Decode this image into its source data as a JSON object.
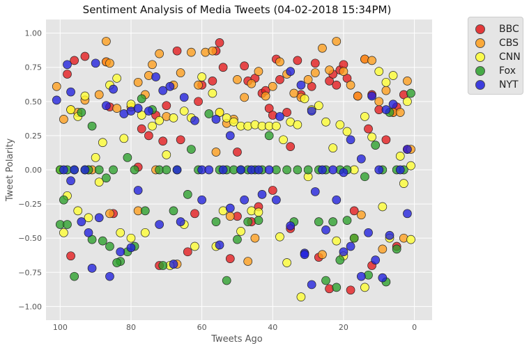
{
  "chart_data": {
    "type": "scatter",
    "title": "Sentiment Analysis of Media Tweets (04-02-2018 15:34PM)",
    "xlabel": "Tweets Ago",
    "ylabel": "Tweet Polarity",
    "xlim": [
      104,
      -5
    ],
    "ylim": [
      -1.1,
      1.1
    ],
    "x_ticks": [
      100,
      80,
      60,
      40,
      20,
      0
    ],
    "y_ticks": [
      1.0,
      0.75,
      0.5,
      0.25,
      0.0,
      -0.25,
      -0.5,
      -0.75,
      -1.0
    ],
    "x_tick_labels": [
      "100",
      "80",
      "60",
      "40",
      "20",
      "0"
    ],
    "y_tick_labels": [
      "1.00",
      "0.75",
      "0.50",
      "0.25",
      "0.00",
      "−0.25",
      "−0.50",
      "−0.75",
      "−1.00"
    ],
    "grid": true,
    "legend_position": "outside-top-right",
    "series": [
      {
        "name": "BBC",
        "color": "#e41a1c",
        "x": [
          96,
          98,
          93,
          87,
          86,
          78,
          77,
          75,
          73,
          71,
          70,
          67,
          66,
          61,
          60,
          57,
          56,
          55,
          54,
          50,
          48,
          47,
          45,
          43,
          42,
          41,
          40,
          39,
          38,
          36,
          35,
          33,
          32,
          29,
          28,
          24,
          23,
          22,
          21,
          20,
          19,
          16,
          14,
          13,
          12,
          10,
          8,
          6,
          5,
          3,
          2,
          97,
          85,
          72,
          64,
          62,
          52,
          50,
          46,
          44,
          40,
          35,
          27,
          24,
          18,
          17,
          12,
          5
        ],
        "y": [
          0.8,
          0.7,
          0.83,
          0.79,
          0.46,
          0.02,
          0.3,
          0.25,
          0.4,
          0.21,
          0.47,
          0.87,
          0.22,
          0.5,
          0.62,
          0.65,
          0.87,
          0.93,
          0.75,
          0.13,
          0.76,
          0.65,
          0.67,
          0.56,
          0.58,
          0.45,
          0.4,
          0.81,
          0.66,
          0.42,
          0.17,
          0.8,
          0.55,
          0.61,
          0.78,
          0.65,
          0.7,
          0.62,
          0.73,
          0.77,
          0.67,
          0.54,
          0.81,
          0.3,
          0.55,
          0.44,
          0.22,
          0.42,
          0.46,
          0.55,
          0.15,
          -0.63,
          -0.32,
          -0.7,
          -0.6,
          -0.32,
          -0.65,
          -0.34,
          -0.38,
          -0.27,
          -0.15,
          -0.43,
          -0.64,
          -0.87,
          -0.88,
          -0.3,
          -0.7,
          -0.56
        ]
      },
      {
        "name": "CBS",
        "color": "#ff9f1c",
        "x": [
          101,
          99,
          97,
          95,
          93,
          91,
          89,
          87,
          86,
          84,
          80,
          78,
          76,
          75,
          74,
          72,
          70,
          68,
          66,
          63,
          61,
          59,
          57,
          55,
          53,
          51,
          50,
          48,
          46,
          44,
          42,
          40,
          38,
          36,
          34,
          32,
          30,
          28,
          26,
          24,
          22,
          20,
          18,
          16,
          14,
          12,
          10,
          8,
          6,
          4,
          2,
          1,
          92,
          86,
          78,
          73,
          67,
          52,
          47,
          45,
          26,
          17,
          15,
          9,
          3,
          87,
          56
        ],
        "y": [
          0.61,
          0.37,
          0.44,
          0.42,
          0.51,
          0.0,
          0.55,
          0.79,
          0.78,
          0.45,
          0.46,
          0.64,
          0.55,
          0.69,
          0.77,
          0.85,
          0.39,
          0.62,
          0.71,
          0.86,
          0.62,
          0.86,
          0.87,
          0.42,
          0.34,
          0.37,
          0.66,
          0.53,
          0.63,
          0.72,
          0.54,
          0.61,
          0.79,
          0.7,
          0.56,
          0.53,
          0.66,
          0.71,
          0.89,
          0.73,
          0.94,
          0.72,
          0.62,
          0.54,
          0.81,
          0.8,
          0.5,
          0.58,
          0.42,
          0.42,
          0.65,
          0.15,
          0.0,
          -0.32,
          -0.3,
          0.0,
          -0.69,
          -0.34,
          -0.67,
          -0.5,
          -0.62,
          -0.5,
          -0.33,
          -0.58,
          -0.5,
          0.94,
          0.13
        ]
      },
      {
        "name": "CNN",
        "color": "#ffff33",
        "x": [
          100,
          98,
          97,
          95,
          93,
          90,
          88,
          86,
          84,
          82,
          80,
          77,
          74,
          72,
          70,
          68,
          65,
          63,
          60,
          57,
          55,
          53,
          51,
          49,
          47,
          45,
          43,
          41,
          39,
          37,
          35,
          33,
          31,
          29,
          27,
          25,
          23,
          21,
          19,
          17,
          14,
          12,
          10,
          8,
          6,
          4,
          2,
          1,
          99,
          95,
          92,
          89,
          83,
          80,
          76,
          69,
          65,
          62,
          56,
          54,
          49,
          46,
          44,
          38,
          36,
          32,
          30,
          22,
          20,
          14,
          9,
          7,
          3,
          1
        ],
        "y": [
          0.0,
          -0.19,
          0.44,
          0.39,
          0.54,
          0.09,
          0.2,
          0.62,
          0.67,
          0.23,
          0.48,
          0.4,
          0.32,
          0.36,
          0.11,
          0.38,
          0.43,
          0.38,
          0.68,
          0.56,
          0.42,
          0.38,
          0.35,
          0.32,
          0.32,
          0.33,
          0.32,
          0.32,
          0.32,
          0.22,
          0.35,
          0.33,
          0.52,
          0.44,
          0.47,
          0.35,
          0.16,
          0.33,
          0.28,
          0.0,
          0.39,
          0.24,
          0.72,
          0.64,
          0.69,
          0.1,
          0.5,
          0.03,
          -0.46,
          -0.3,
          -0.35,
          -0.09,
          -0.46,
          -0.5,
          -0.46,
          -0.7,
          -0.4,
          -0.56,
          -0.56,
          -0.3,
          -0.45,
          -0.3,
          -0.31,
          -0.49,
          -0.68,
          -0.93,
          -0.05,
          -0.52,
          -0.63,
          -0.86,
          -0.27,
          -0.5,
          -0.1,
          -0.51
        ]
      },
      {
        "name": "Fox",
        "color": "#2ca02c",
        "x": [
          100,
          99,
          98,
          96,
          94,
          92,
          91,
          89,
          87,
          85,
          83,
          81,
          79,
          77,
          74,
          72,
          70,
          67,
          63,
          61,
          58,
          55,
          53,
          51,
          49,
          47,
          45,
          43,
          41,
          39,
          36,
          33,
          30,
          27,
          25,
          23,
          21,
          19,
          17,
          14,
          11,
          9,
          7,
          5,
          3,
          1,
          100,
          98,
          96,
          93,
          91,
          88,
          86,
          84,
          81,
          79,
          76,
          71,
          68,
          64,
          56,
          53,
          50,
          47,
          44,
          34,
          27,
          25,
          22,
          21,
          19,
          13,
          8,
          5
        ],
        "y": [
          0.0,
          -0.22,
          0.0,
          -0.78,
          0.42,
          0.0,
          0.32,
          0.0,
          -0.06,
          0.0,
          -0.67,
          0.09,
          0.0,
          0.52,
          0.44,
          0.0,
          0.0,
          0.0,
          0.15,
          0.0,
          0.41,
          0.0,
          0.0,
          0.0,
          0.0,
          0.0,
          0.0,
          0.0,
          0.25,
          0.0,
          0.0,
          0.0,
          0.0,
          0.0,
          0.0,
          -0.38,
          0.0,
          0.0,
          -0.5,
          -0.05,
          0.18,
          0.0,
          0.42,
          0.0,
          0.0,
          0.56,
          -0.4,
          -0.4,
          0.0,
          0.0,
          -0.51,
          -0.52,
          -0.56,
          -0.68,
          -0.6,
          -0.56,
          -0.3,
          -0.7,
          -0.3,
          -0.18,
          -0.38,
          -0.81,
          -0.51,
          -0.38,
          -0.37,
          -0.38,
          -0.38,
          -0.81,
          -0.86,
          -0.66,
          -0.37,
          -0.77,
          -0.82,
          -0.58
        ]
      },
      {
        "name": "NYT",
        "color": "#2020dd",
        "x": [
          101,
          99,
          98,
          97,
          96,
          93,
          90,
          87,
          85,
          82,
          80,
          78,
          75,
          73,
          71,
          69,
          67,
          65,
          62,
          60,
          58,
          56,
          54,
          52,
          49,
          46,
          44,
          41,
          38,
          35,
          32,
          29,
          26,
          23,
          20,
          18,
          15,
          12,
          10,
          8,
          6,
          4,
          2,
          97,
          94,
          92,
          89,
          86,
          83,
          80,
          78,
          72,
          68,
          66,
          60,
          55,
          52,
          48,
          43,
          39,
          35,
          31,
          29,
          28,
          25,
          22,
          20,
          18,
          15,
          13,
          11,
          9,
          7,
          2,
          91,
          31
        ],
        "y": [
          0.51,
          0.0,
          0.77,
          0.57,
          0.0,
          0.0,
          0.78,
          0.47,
          0.59,
          0.41,
          0.43,
          0.45,
          0.43,
          0.68,
          0.58,
          0.61,
          0.0,
          0.53,
          0.36,
          0.0,
          0.0,
          0.37,
          0.0,
          0.25,
          0.0,
          0.0,
          0.0,
          0.0,
          0.39,
          0.72,
          0.62,
          0.43,
          0.0,
          0.0,
          -0.02,
          0.22,
          0.08,
          0.54,
          0.0,
          0.44,
          0.48,
          0.0,
          0.15,
          -0.08,
          -0.38,
          -0.46,
          -0.35,
          -0.78,
          -0.6,
          -0.57,
          -0.15,
          -0.4,
          -0.69,
          -0.38,
          -0.22,
          -0.55,
          -0.28,
          -0.22,
          -0.18,
          -0.22,
          -0.41,
          -0.61,
          -0.84,
          -0.16,
          -0.44,
          -0.22,
          -0.6,
          -0.56,
          -0.78,
          -0.46,
          -0.66,
          -0.79,
          -0.48,
          -0.32,
          -0.72,
          -0.62
        ]
      }
    ]
  }
}
